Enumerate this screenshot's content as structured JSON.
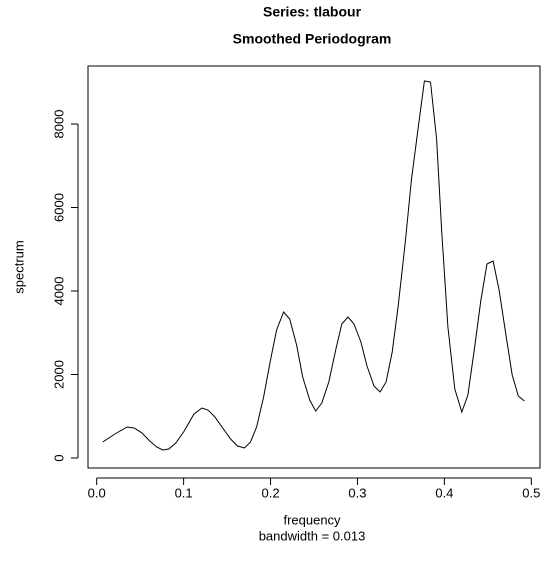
{
  "chart_data": {
    "type": "line",
    "title": "Series: tlabour",
    "subtitle": "Smoothed Periodogram",
    "xlabel": "frequency",
    "xlabel_note": "bandwidth = 0.013",
    "ylabel": "spectrum",
    "color": "#000000",
    "xlim": [
      -0.01,
      0.51
    ],
    "ylim": [
      -240,
      9390
    ],
    "xticks": [
      {
        "value": 0,
        "label": "0.0"
      },
      0.1,
      0.2,
      0.3,
      0.4,
      0.5
    ],
    "yticks": [
      0,
      2000,
      4000,
      6000,
      8000
    ],
    "x": [
      0.007,
      0.021,
      0.035,
      0.043,
      0.052,
      0.061,
      0.069,
      0.076,
      0.083,
      0.091,
      0.1,
      0.112,
      0.121,
      0.128,
      0.136,
      0.145,
      0.154,
      0.162,
      0.17,
      0.177,
      0.184,
      0.192,
      0.2,
      0.207,
      0.215,
      0.222,
      0.23,
      0.237,
      0.245,
      0.252,
      0.259,
      0.267,
      0.275,
      0.282,
      0.289,
      0.296,
      0.304,
      0.311,
      0.319,
      0.326,
      0.333,
      0.34,
      0.347,
      0.355,
      0.362,
      0.37,
      0.377,
      0.384,
      0.391,
      0.397,
      0.404,
      0.412,
      0.42,
      0.427,
      0.435,
      0.442,
      0.449,
      0.456,
      0.463,
      0.471,
      0.478,
      0.485,
      0.492
    ],
    "values": [
      383,
      575,
      743,
      719,
      600,
      407,
      263,
      192,
      216,
      360,
      623,
      1054,
      1198,
      1150,
      982,
      719,
      455,
      287,
      240,
      383,
      743,
      1461,
      2347,
      3066,
      3497,
      3329,
      2707,
      1940,
      1389,
      1126,
      1317,
      1820,
      2587,
      3210,
      3377,
      3210,
      2778,
      2204,
      1725,
      1581,
      1820,
      2539,
      3665,
      5174,
      6659,
      7928,
      9030,
      9006,
      7641,
      5389,
      3138,
      1653,
      1102,
      1509,
      2683,
      3784,
      4647,
      4719,
      4024,
      2922,
      1988,
      1485,
      1365
    ]
  }
}
